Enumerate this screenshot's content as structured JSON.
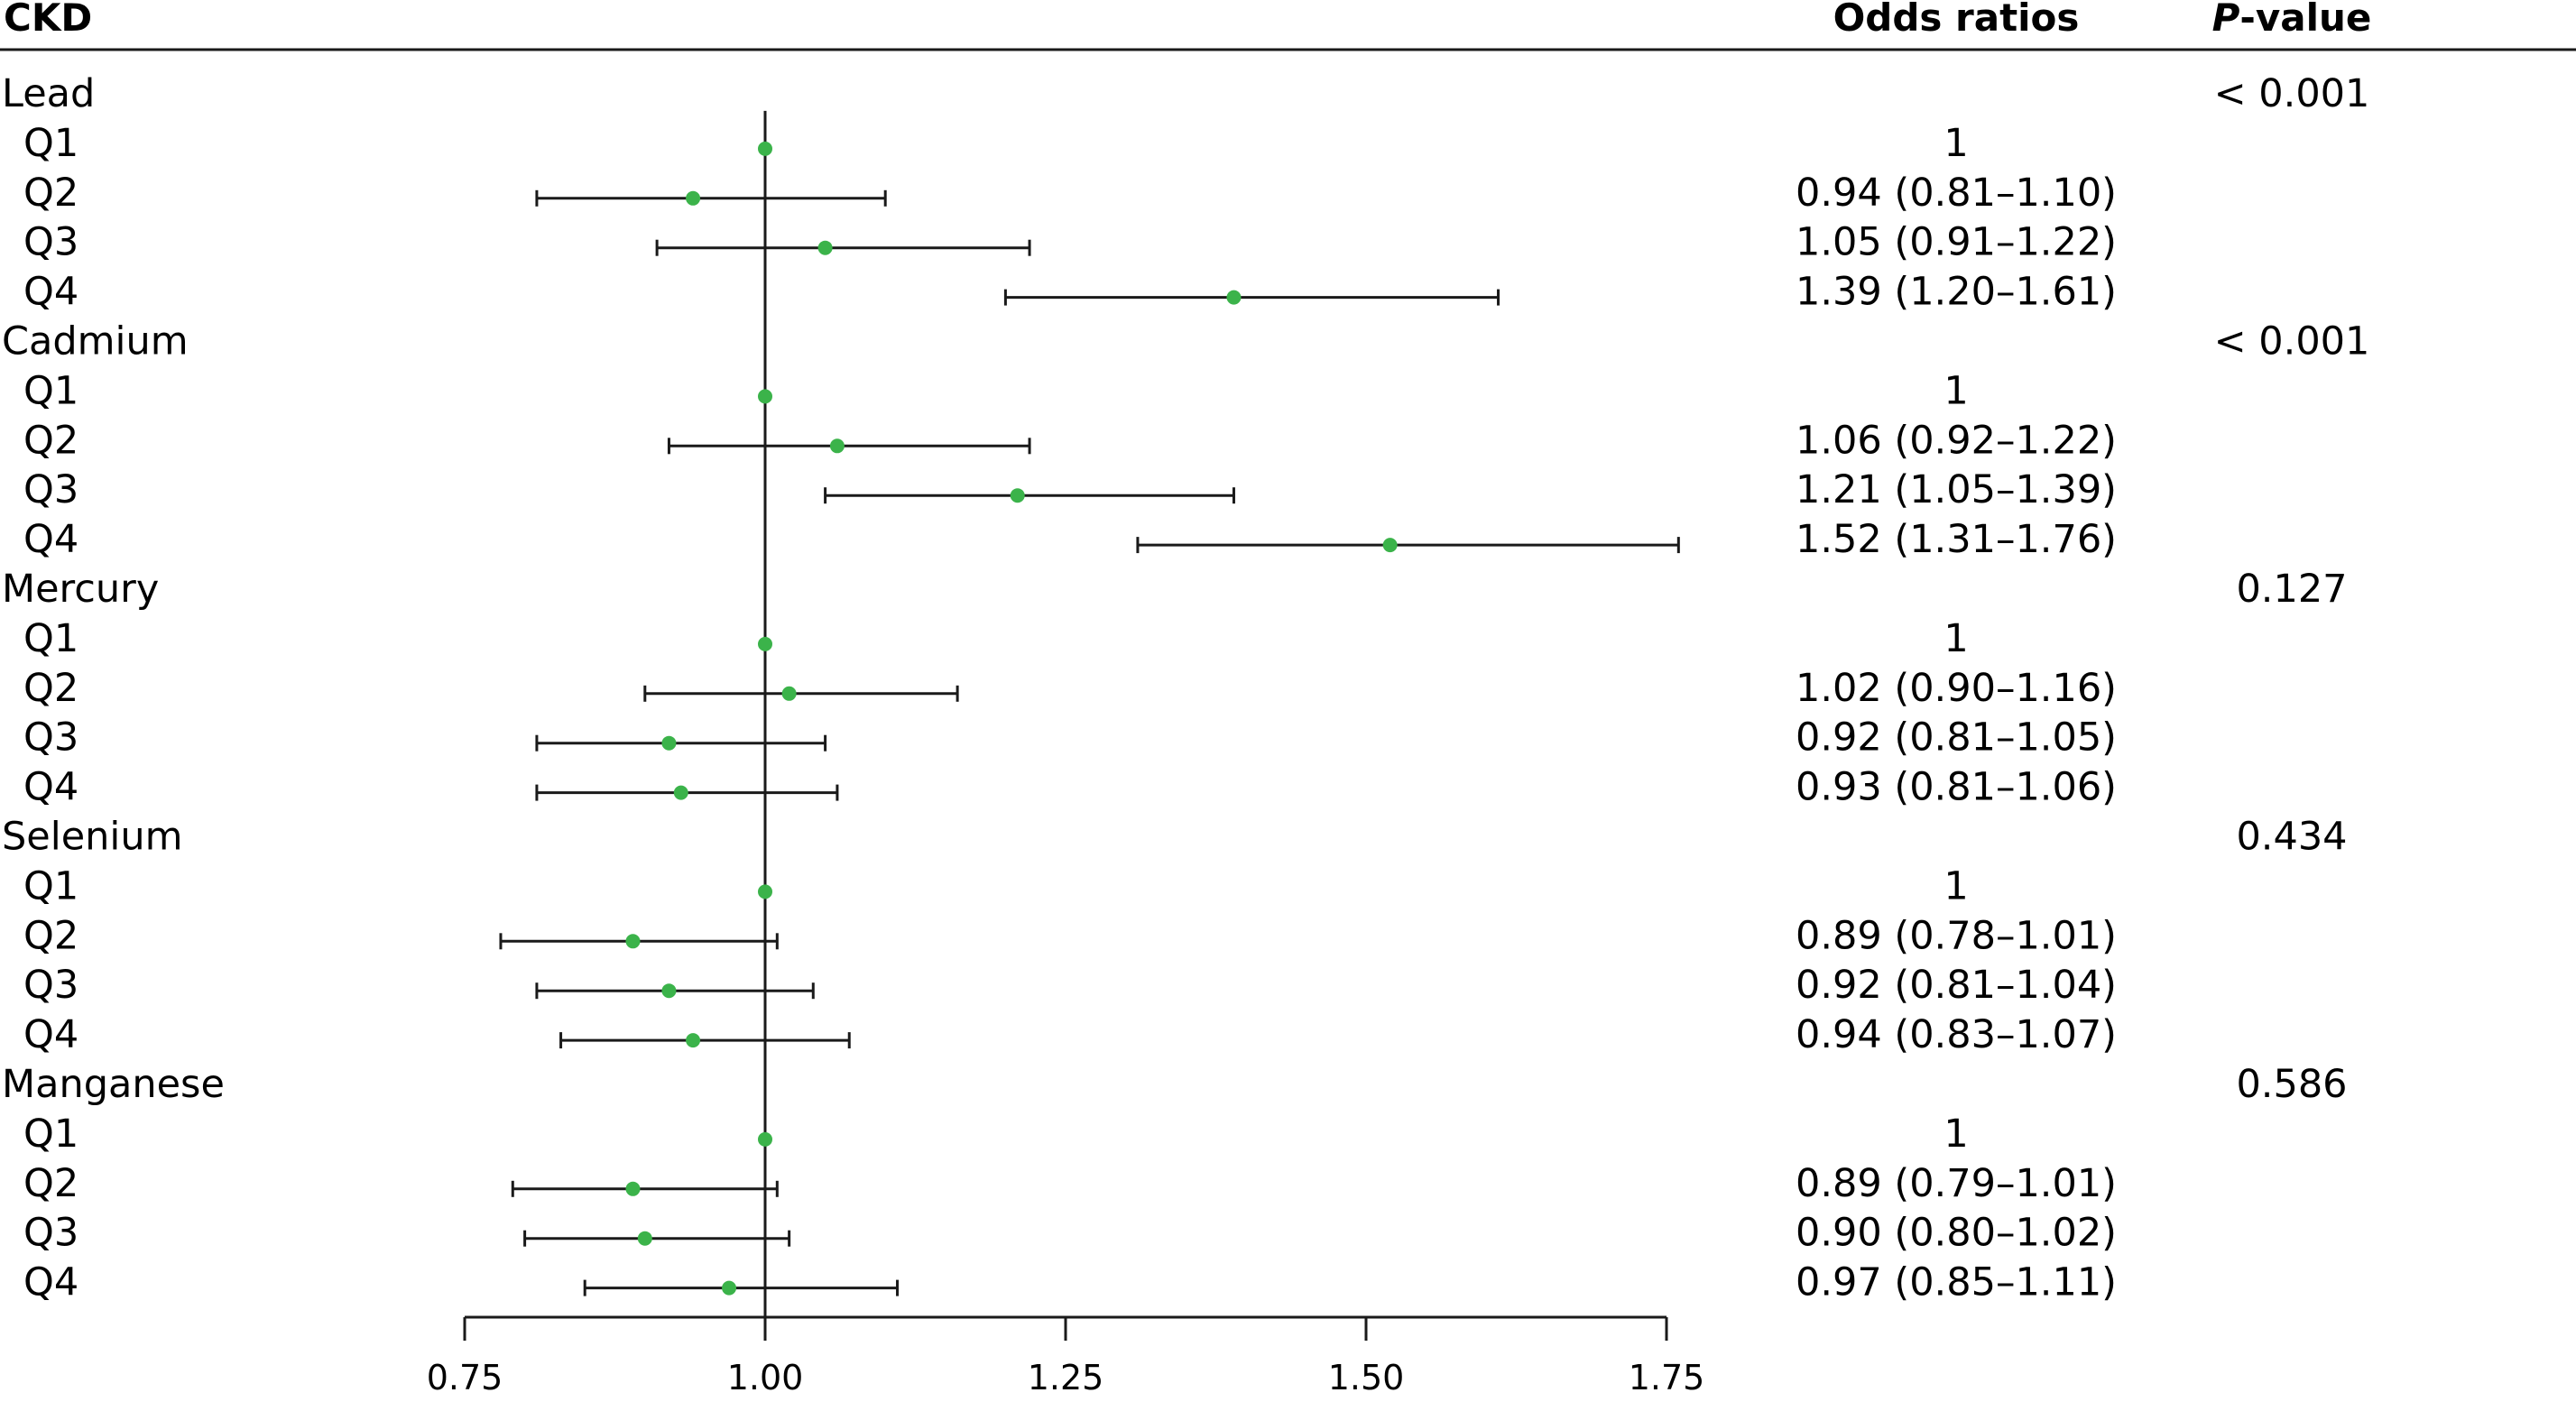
{
  "header": {
    "ckd": "CKD",
    "odds_ratios": "Odds ratios",
    "p_prefix": "P",
    "p_suffix": "-value"
  },
  "colors": {
    "point": "#3bb34a",
    "line": "#1a1a1a"
  },
  "chart_data": {
    "type": "forest",
    "reference_line": 1.0,
    "xlim": [
      0.75,
      1.76
    ],
    "xticks": [
      0.75,
      1.0,
      1.25,
      1.5,
      1.75
    ],
    "xtick_labels": [
      "0.75",
      "1.00",
      "1.25",
      "1.50",
      "1.75"
    ],
    "groups": [
      {
        "name": "Lead",
        "p_value": "< 0.001",
        "rows": [
          {
            "label": "Q1",
            "or": 1.0,
            "lo": null,
            "hi": null,
            "text": "1"
          },
          {
            "label": "Q2",
            "or": 0.94,
            "lo": 0.81,
            "hi": 1.1,
            "text": "0.94 (0.81–1.10)"
          },
          {
            "label": "Q3",
            "or": 1.05,
            "lo": 0.91,
            "hi": 1.22,
            "text": "1.05 (0.91–1.22)"
          },
          {
            "label": "Q4",
            "or": 1.39,
            "lo": 1.2,
            "hi": 1.61,
            "text": "1.39 (1.20–1.61)"
          }
        ]
      },
      {
        "name": "Cadmium",
        "p_value": "< 0.001",
        "rows": [
          {
            "label": "Q1",
            "or": 1.0,
            "lo": null,
            "hi": null,
            "text": "1"
          },
          {
            "label": "Q2",
            "or": 1.06,
            "lo": 0.92,
            "hi": 1.22,
            "text": "1.06 (0.92–1.22)"
          },
          {
            "label": "Q3",
            "or": 1.21,
            "lo": 1.05,
            "hi": 1.39,
            "text": "1.21 (1.05–1.39)"
          },
          {
            "label": "Q4",
            "or": 1.52,
            "lo": 1.31,
            "hi": 1.76,
            "text": "1.52 (1.31–1.76)"
          }
        ]
      },
      {
        "name": "Mercury",
        "p_value": "0.127",
        "rows": [
          {
            "label": "Q1",
            "or": 1.0,
            "lo": null,
            "hi": null,
            "text": "1"
          },
          {
            "label": "Q2",
            "or": 1.02,
            "lo": 0.9,
            "hi": 1.16,
            "text": "1.02 (0.90–1.16)"
          },
          {
            "label": "Q3",
            "or": 0.92,
            "lo": 0.81,
            "hi": 1.05,
            "text": "0.92 (0.81–1.05)"
          },
          {
            "label": "Q4",
            "or": 0.93,
            "lo": 0.81,
            "hi": 1.06,
            "text": "0.93 (0.81–1.06)"
          }
        ]
      },
      {
        "name": "Selenium",
        "p_value": "0.434",
        "rows": [
          {
            "label": "Q1",
            "or": 1.0,
            "lo": null,
            "hi": null,
            "text": "1"
          },
          {
            "label": "Q2",
            "or": 0.89,
            "lo": 0.78,
            "hi": 1.01,
            "text": "0.89 (0.78–1.01)"
          },
          {
            "label": "Q3",
            "or": 0.92,
            "lo": 0.81,
            "hi": 1.04,
            "text": "0.92 (0.81–1.04)"
          },
          {
            "label": "Q4",
            "or": 0.94,
            "lo": 0.83,
            "hi": 1.07,
            "text": "0.94 (0.83–1.07)"
          }
        ]
      },
      {
        "name": "Manganese",
        "p_value": "0.586",
        "rows": [
          {
            "label": "Q1",
            "or": 1.0,
            "lo": null,
            "hi": null,
            "text": "1"
          },
          {
            "label": "Q2",
            "or": 0.89,
            "lo": 0.79,
            "hi": 1.01,
            "text": "0.89 (0.79–1.01)"
          },
          {
            "label": "Q3",
            "or": 0.9,
            "lo": 0.8,
            "hi": 1.02,
            "text": "0.90 (0.80–1.02)"
          },
          {
            "label": "Q4",
            "or": 0.97,
            "lo": 0.85,
            "hi": 1.11,
            "text": "0.97 (0.85–1.11)"
          }
        ]
      }
    ]
  }
}
